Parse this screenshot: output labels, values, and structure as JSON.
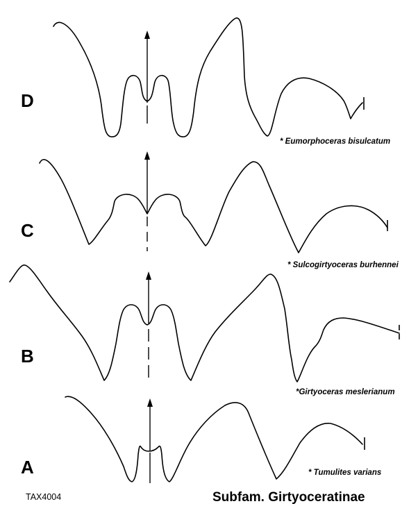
{
  "figure": {
    "catalog_id": "TAX4004",
    "subfamily": "Subfam. Girtyoceratinae"
  },
  "rows": [
    {
      "letter": "D",
      "species": "* Eumorphoceras bisulcatum"
    },
    {
      "letter": "C",
      "species": "* Sulcogirtyoceras burhennei"
    },
    {
      "letter": "B",
      "species": "*Girtyoceras meslerianum"
    },
    {
      "letter": "A",
      "species": "* Tumulites varians"
    }
  ],
  "colors": {
    "line": "#000000",
    "background": "#ffffff"
  }
}
